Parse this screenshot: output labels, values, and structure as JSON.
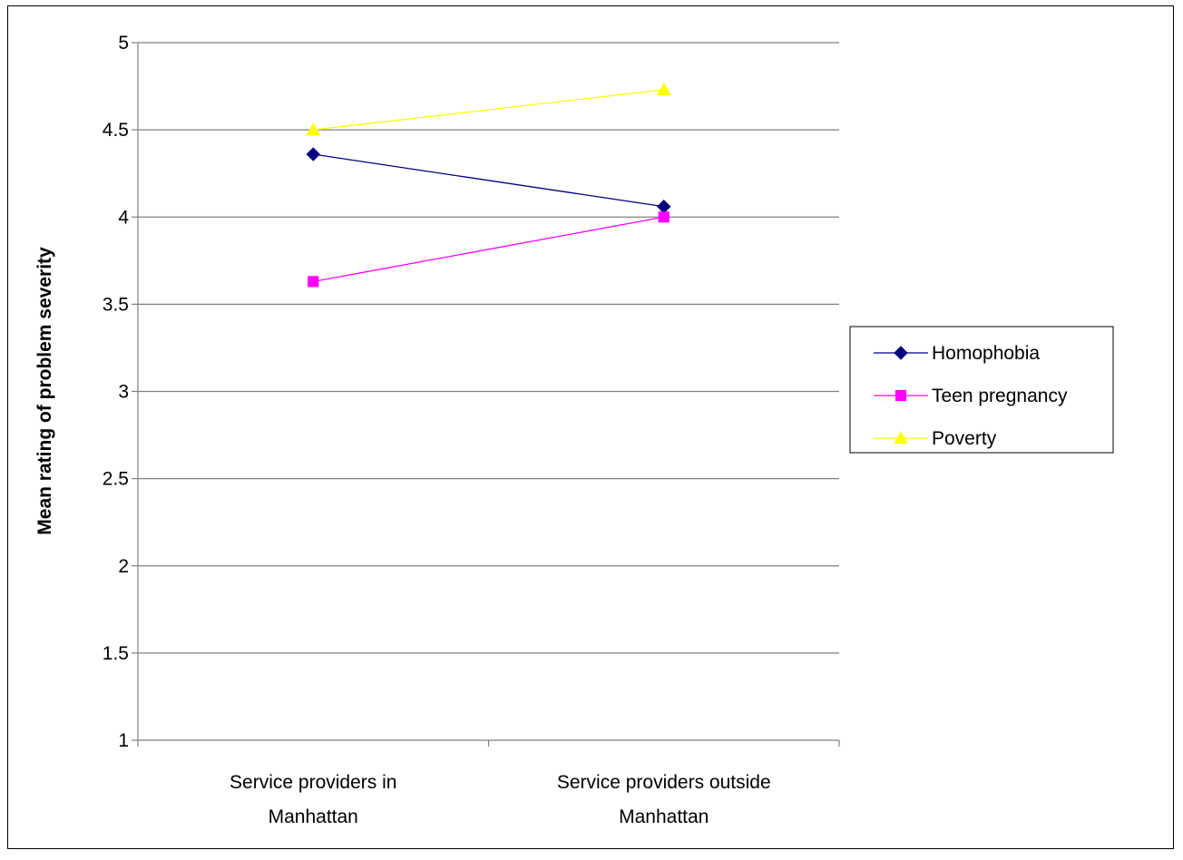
{
  "chart_data": {
    "type": "line",
    "title": "",
    "xlabel": "",
    "ylabel": "Mean rating of problem severity",
    "categories": [
      [
        "Service providers in",
        "Manhattan"
      ],
      [
        "Service providers outside",
        "Manhattan"
      ]
    ],
    "ylim": [
      1,
      5
    ],
    "yticks": [
      1,
      1.5,
      2,
      2.5,
      3,
      3.5,
      4,
      4.5,
      5
    ],
    "grid": true,
    "legend_position": "right",
    "series": [
      {
        "name": "Homophobia",
        "values": [
          4.36,
          4.06
        ],
        "color": "#000080",
        "marker": "diamond"
      },
      {
        "name": "Teen pregnancy",
        "values": [
          3.63,
          4.0
        ],
        "color": "#ff00ff",
        "marker": "square"
      },
      {
        "name": "Poverty",
        "values": [
          4.5,
          4.73
        ],
        "color": "#ffff00",
        "marker": "triangle"
      }
    ]
  }
}
